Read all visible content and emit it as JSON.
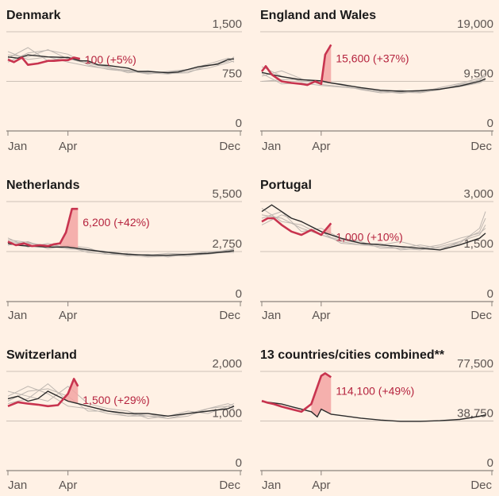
{
  "colors": {
    "background": "#fff1e5",
    "highlight": "#c8344f",
    "excess_fill": "#f3a5a3",
    "current_avg": "#2b2b2b",
    "past_years": "#bdb6b0",
    "grid": "#ccc1b7",
    "text": "#1a1a1a",
    "axis_text": "#5c5552"
  },
  "chart_data": [
    {
      "type": "line",
      "title": "Denmark",
      "x_ticks": [
        "Jan",
        "Apr",
        "Dec"
      ],
      "y_ticks": [
        "1,500",
        "750",
        "0"
      ],
      "ylim": [
        0,
        1500
      ],
      "annotation": "100 (+5%)",
      "highlight": {
        "x": [
          0,
          0.3,
          0.7,
          1,
          1.5,
          2,
          2.3,
          2.7,
          3,
          3.3,
          3.6
        ],
        "y": [
          1080,
          1040,
          1110,
          1000,
          1020,
          1060,
          1060,
          1070,
          1070,
          1110,
          1090
        ]
      },
      "baseline": {
        "x": [
          0,
          0.5,
          1,
          2,
          3,
          3.6,
          4,
          4.5,
          5,
          5.5,
          6,
          6.5,
          7,
          7.5,
          8,
          8.5,
          9,
          9.5,
          10,
          10.5,
          11,
          11.3
        ],
        "y": [
          1120,
          1100,
          1150,
          1120,
          1110,
          1060,
          1060,
          1000,
          990,
          970,
          950,
          900,
          900,
          890,
          880,
          890,
          930,
          970,
          990,
          1010,
          1080,
          1090
        ]
      },
      "past_years": [
        {
          "x": [
            0,
            1,
            2,
            3,
            4,
            5,
            6,
            7,
            8,
            9,
            10,
            11,
            11.3
          ],
          "y": [
            1040,
            1180,
            1220,
            1160,
            1000,
            930,
            900,
            880,
            860,
            900,
            950,
            1030,
            1060
          ]
        },
        {
          "x": [
            0,
            1,
            2,
            3,
            4,
            5,
            6,
            7,
            8,
            9,
            10,
            11,
            11.3
          ],
          "y": [
            1200,
            1080,
            1120,
            1040,
            980,
            940,
            920,
            870,
            900,
            930,
            1010,
            1100,
            1080
          ]
        },
        {
          "x": [
            0,
            1,
            2,
            3,
            4,
            5,
            6,
            7,
            8,
            9,
            10,
            11,
            11.3
          ],
          "y": [
            1100,
            1260,
            1060,
            1120,
            1040,
            970,
            880,
            910,
            870,
            880,
            990,
            1050,
            1120
          ]
        },
        {
          "x": [
            0,
            1,
            2,
            3,
            4,
            5,
            6,
            7,
            8,
            9,
            10,
            11,
            11.3
          ],
          "y": [
            1150,
            1120,
            1230,
            1090,
            1020,
            960,
            910,
            860,
            890,
            920,
            980,
            1080,
            1040
          ]
        }
      ],
      "excess": false
    },
    {
      "type": "line",
      "title": "England and Wales",
      "x_ticks": [
        "Jan",
        "Apr",
        "Dec"
      ],
      "y_ticks": [
        "19,000",
        "9,500",
        "0"
      ],
      "ylim": [
        0,
        19000
      ],
      "annotation": "15,600 (+37%)",
      "highlight": {
        "x": [
          0,
          0.2,
          0.5,
          1,
          1.5,
          2,
          2.3,
          2.7,
          3,
          3.2,
          3.5
        ],
        "y": [
          11400,
          12400,
          10800,
          9500,
          9200,
          9000,
          8800,
          9500,
          9000,
          14600,
          16500
        ]
      },
      "baseline": {
        "x": [
          0,
          0.5,
          1,
          2,
          3,
          3.5,
          4,
          5,
          6,
          7,
          8,
          9,
          10,
          11,
          11.3
        ],
        "y": [
          11200,
          10800,
          10400,
          9800,
          9600,
          9200,
          8900,
          8300,
          7800,
          7600,
          7700,
          8000,
          8600,
          9500,
          10000
        ]
      },
      "past_years": [
        {
          "x": [
            0,
            1,
            2,
            3,
            4,
            5,
            6,
            7,
            8,
            9,
            10,
            11,
            11.3
          ],
          "y": [
            12300,
            10500,
            9500,
            9300,
            9000,
            8200,
            7800,
            7500,
            7800,
            8100,
            8700,
            9800,
            10600
          ]
        },
        {
          "x": [
            0,
            1,
            2,
            3,
            4,
            5,
            6,
            7,
            8,
            9,
            10,
            11,
            11.3
          ],
          "y": [
            10500,
            11500,
            10000,
            8900,
            8500,
            8000,
            7600,
            7200,
            7600,
            8000,
            8500,
            9200,
            9800
          ]
        },
        {
          "x": [
            0,
            1,
            2,
            3,
            4,
            5,
            6,
            7,
            8,
            9,
            10,
            11,
            11.3
          ],
          "y": [
            9500,
            9800,
            9900,
            9600,
            8800,
            7900,
            7300,
            7400,
            7300,
            7900,
            8900,
            9600,
            11200
          ]
        },
        {
          "x": [
            0,
            1,
            2,
            3,
            4,
            5,
            6,
            7,
            8,
            9,
            10,
            11,
            11.3
          ],
          "y": [
            11000,
            9000,
            9200,
            8700,
            8400,
            8100,
            7500,
            7800,
            7400,
            8300,
            9100,
            10100,
            10500
          ]
        }
      ],
      "excess": true
    },
    {
      "type": "line",
      "title": "Netherlands",
      "x_ticks": [
        "Jan",
        "Apr",
        "Dec"
      ],
      "y_ticks": [
        "5,500",
        "2,750",
        "0"
      ],
      "ylim": [
        0,
        5500
      ],
      "annotation": "6,200 (+42%)",
      "highlight": {
        "x": [
          0,
          0.4,
          0.8,
          1.2,
          1.6,
          2,
          2.3,
          2.6,
          2.9,
          3.2,
          3.5
        ],
        "y": [
          3300,
          3100,
          3200,
          3050,
          3100,
          3050,
          3150,
          3200,
          3800,
          5100,
          5100
        ]
      },
      "baseline": {
        "x": [
          0,
          0.5,
          1,
          2,
          3,
          4,
          5,
          6,
          7,
          8,
          9,
          10,
          11,
          11.3
        ],
        "y": [
          3200,
          3100,
          3050,
          3000,
          3000,
          2850,
          2700,
          2600,
          2550,
          2550,
          2600,
          2650,
          2750,
          2800
        ]
      },
      "past_years": [
        {
          "x": [
            0,
            1,
            2,
            3,
            4,
            5,
            6,
            7,
            8,
            9,
            10,
            11,
            11.3
          ],
          "y": [
            3300,
            3200,
            3100,
            3000,
            2700,
            2600,
            2550,
            2450,
            2500,
            2550,
            2600,
            2750,
            2900
          ]
        },
        {
          "x": [
            0,
            1,
            2,
            3,
            4,
            5,
            6,
            7,
            8,
            9,
            10,
            11,
            11.3
          ],
          "y": [
            3500,
            3000,
            3200,
            2950,
            2800,
            2700,
            2500,
            2600,
            2450,
            2600,
            2700,
            2700,
            2700
          ]
        },
        {
          "x": [
            0,
            1,
            2,
            3,
            4,
            5,
            6,
            7,
            8,
            9,
            10,
            11,
            11.3
          ],
          "y": [
            3100,
            3300,
            2900,
            3100,
            2950,
            2600,
            2650,
            2500,
            2550,
            2500,
            2650,
            2850,
            2850
          ]
        },
        {
          "x": [
            0,
            1,
            2,
            3,
            4,
            5,
            6,
            7,
            8,
            9,
            10,
            11,
            11.3
          ],
          "y": [
            3400,
            3250,
            3050,
            2900,
            2850,
            2750,
            2600,
            2550,
            2650,
            2600,
            2750,
            2800,
            2950
          ]
        }
      ],
      "excess": true
    },
    {
      "type": "line",
      "title": "Portugal",
      "x_ticks": [
        "Jan",
        "Apr",
        "Dec"
      ],
      "y_ticks": [
        "3,000",
        "1,500",
        "0"
      ],
      "ylim": [
        0,
        3000
      ],
      "annotation": "1,000 (+10%)",
      "highlight": {
        "x": [
          0,
          0.3,
          0.6,
          1,
          1.5,
          2,
          2.5,
          3,
          3.5
        ],
        "y": [
          2400,
          2500,
          2500,
          2300,
          2100,
          2000,
          2150,
          2000,
          2350
        ]
      },
      "baseline": {
        "x": [
          0,
          0.5,
          1,
          1.5,
          2,
          3,
          4,
          5,
          6,
          7,
          8,
          9,
          10,
          11,
          11.3
        ],
        "y": [
          2700,
          2900,
          2700,
          2500,
          2400,
          2100,
          1900,
          1750,
          1700,
          1650,
          1600,
          1550,
          1700,
          1900,
          2050
        ]
      },
      "past_years": [
        {
          "x": [
            0,
            1,
            2,
            3,
            4,
            5,
            6,
            7,
            8,
            9,
            10,
            11,
            11.3
          ],
          "y": [
            2600,
            2500,
            2200,
            2000,
            1800,
            1700,
            1650,
            1600,
            1550,
            1650,
            1800,
            2100,
            2500
          ]
        },
        {
          "x": [
            0,
            1,
            2,
            3,
            4,
            5,
            6,
            7,
            8,
            9,
            10,
            11,
            11.3
          ],
          "y": [
            2800,
            2400,
            2300,
            2000,
            1850,
            1750,
            1700,
            1800,
            1650,
            1550,
            1800,
            2000,
            2300
          ]
        },
        {
          "x": [
            0,
            1,
            2,
            3,
            4,
            5,
            6,
            7,
            8,
            9,
            10,
            11,
            11.3
          ],
          "y": [
            2500,
            2700,
            2100,
            2200,
            1900,
            1800,
            1600,
            1600,
            1700,
            1600,
            1750,
            2200,
            2700
          ]
        },
        {
          "x": [
            0,
            1,
            2,
            3,
            4,
            5,
            6,
            7,
            8,
            9,
            10,
            11,
            11.3
          ],
          "y": [
            2300,
            2600,
            2400,
            2100,
            1750,
            1700,
            1750,
            1550,
            1600,
            1700,
            1900,
            2050,
            2200
          ]
        }
      ],
      "excess": true
    },
    {
      "type": "line",
      "title": "Switzerland",
      "x_ticks": [
        "Jan",
        "Apr",
        "Dec"
      ],
      "y_ticks": [
        "2,000",
        "1,000",
        "0"
      ],
      "ylim": [
        0,
        2000
      ],
      "annotation": "1,500 (+29%)",
      "highlight": {
        "x": [
          0,
          0.5,
          1,
          1.5,
          2,
          2.5,
          3,
          3.3,
          3.5
        ],
        "y": [
          1300,
          1380,
          1350,
          1330,
          1300,
          1320,
          1550,
          1850,
          1700
        ]
      },
      "baseline": {
        "x": [
          0,
          0.5,
          1,
          1.5,
          2,
          2.5,
          3,
          3.5,
          4,
          5,
          6,
          7,
          8,
          9,
          10,
          11,
          11.3
        ],
        "y": [
          1450,
          1500,
          1400,
          1450,
          1600,
          1500,
          1400,
          1350,
          1300,
          1200,
          1150,
          1150,
          1100,
          1150,
          1200,
          1250,
          1300
        ]
      },
      "past_years": [
        {
          "x": [
            0,
            1,
            2,
            3,
            4,
            5,
            6,
            7,
            8,
            9,
            10,
            11,
            11.3
          ],
          "y": [
            1500,
            1700,
            1550,
            1300,
            1250,
            1150,
            1100,
            1100,
            1050,
            1150,
            1200,
            1250,
            1300
          ]
        },
        {
          "x": [
            0,
            1,
            2,
            3,
            4,
            5,
            6,
            7,
            8,
            9,
            10,
            11,
            11.3
          ],
          "y": [
            1350,
            1450,
            1750,
            1400,
            1300,
            1200,
            1150,
            1100,
            1100,
            1150,
            1250,
            1300,
            1250
          ]
        },
        {
          "x": [
            0,
            1,
            2,
            3,
            4,
            5,
            6,
            7,
            8,
            9,
            10,
            11,
            11.3
          ],
          "y": [
            1600,
            1500,
            1400,
            1700,
            1350,
            1250,
            1200,
            1050,
            1100,
            1200,
            1150,
            1300,
            1350
          ]
        },
        {
          "x": [
            0,
            1,
            2,
            3,
            4,
            5,
            6,
            7,
            8,
            9,
            10,
            11,
            11.3
          ],
          "y": [
            1400,
            1600,
            1650,
            1500,
            1200,
            1200,
            1100,
            1150,
            1050,
            1100,
            1250,
            1350,
            1300
          ]
        }
      ],
      "excess": true
    },
    {
      "type": "line",
      "title": "13 countries/cities combined**",
      "x_ticks": [
        "Jan",
        "Apr",
        "Dec"
      ],
      "y_ticks": [
        "77,500",
        "38,750",
        "0"
      ],
      "ylim": [
        0,
        77500
      ],
      "annotation": "114,100 (+49%)",
      "highlight": {
        "x": [
          0,
          0.3,
          0.6,
          1,
          1.5,
          2,
          2.5,
          3,
          3.2,
          3.5
        ],
        "y": [
          54500,
          53000,
          52000,
          50000,
          48000,
          46000,
          52000,
          74000,
          76000,
          73000
        ]
      },
      "baseline": {
        "x": [
          0,
          0.5,
          1,
          1.5,
          2,
          2.5,
          2.8,
          3,
          3.5,
          4,
          5,
          6,
          7,
          8,
          9,
          10,
          11,
          11.3
        ],
        "y": [
          54000,
          53000,
          52000,
          50000,
          48000,
          46000,
          42000,
          48000,
          44000,
          43000,
          41000,
          39500,
          38500,
          38500,
          39000,
          40000,
          42500,
          43500
        ]
      },
      "past_years": [],
      "excess": true
    }
  ]
}
